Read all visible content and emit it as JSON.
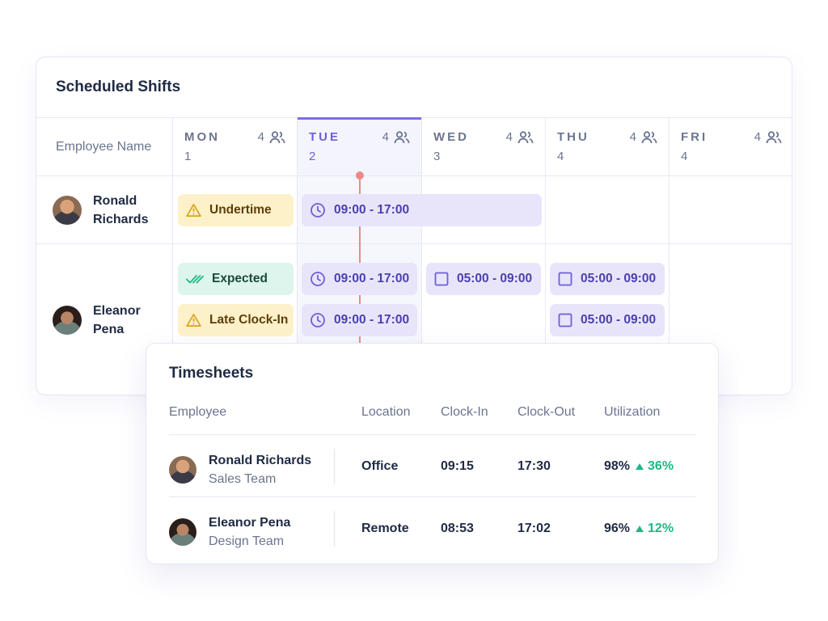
{
  "shifts": {
    "title": "Scheduled Shifts",
    "name_header": "Employee Name",
    "days": [
      {
        "name": "MON",
        "num": "1",
        "count": "4",
        "today": false
      },
      {
        "name": "TUE",
        "num": "2",
        "count": "4",
        "today": true
      },
      {
        "name": "WED",
        "num": "3",
        "count": "4",
        "today": false
      },
      {
        "name": "THU",
        "num": "4",
        "count": "4",
        "today": false
      },
      {
        "name": "FRI",
        "num": "4",
        "count": "4",
        "today": false
      }
    ],
    "employees": [
      {
        "name": "Ronald Richards"
      },
      {
        "name": "Eleanor Pena"
      }
    ],
    "chips": {
      "undertime": "Undertime",
      "expected": "Expected",
      "late_clock_in": "Late Clock-In",
      "shift_tue_ronald": "09:00 - 17:00",
      "shift_tue_eleanor_1": "09:00 - 17:00",
      "shift_tue_eleanor_2": "09:00 - 17:00",
      "shift_wed_eleanor": "05:00 - 09:00",
      "shift_thu_eleanor_1": "05:00 - 09:00",
      "shift_thu_eleanor_2": "05:00 - 09:00"
    },
    "colors": {
      "accent": "#7b6ee6",
      "now_line": "#ea8b8b",
      "warn_bg": "#fdf1c9",
      "ok_bg": "#ddf5ec",
      "shift_bg": "#e8e5fb"
    }
  },
  "timesheets": {
    "title": "Timesheets",
    "headers": {
      "employee": "Employee",
      "location": "Location",
      "clock_in": "Clock-In",
      "clock_out": "Clock-Out",
      "utilization": "Utilization"
    },
    "rows": [
      {
        "name": "Ronald Richards",
        "team": "Sales Team",
        "location": "Office",
        "clock_in": "09:15",
        "clock_out": "17:30",
        "utilization": "98%",
        "trend": "36%"
      },
      {
        "name": "Eleanor Pena",
        "team": "Design Team",
        "location": "Remote",
        "clock_in": "08:53",
        "clock_out": "17:02",
        "utilization": "96%",
        "trend": "12%"
      }
    ]
  },
  "icons": {
    "warning": "warning-triangle-icon",
    "clock": "clock-icon",
    "checkbox": "checkbox-icon",
    "double_check": "double-check-icon",
    "people": "people-icon",
    "trend_up": "triangle-up-icon"
  }
}
